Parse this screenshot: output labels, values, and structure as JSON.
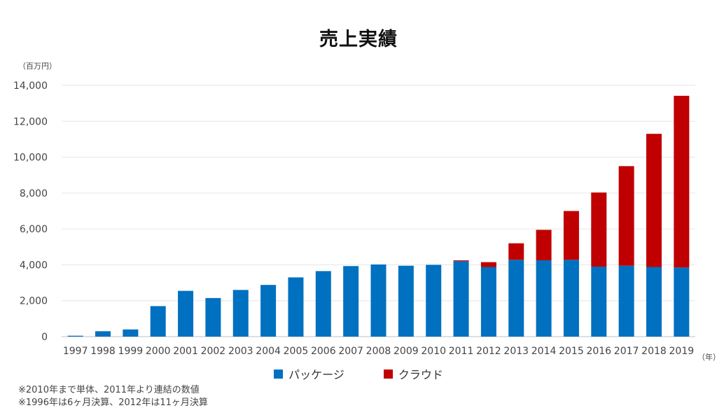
{
  "title": "売上実績",
  "y_unit": "（百万円）",
  "x_unit": "（年）",
  "notes": [
    "※2010年まで単体、2011年より連結の数値",
    "※1996年は6ヶ月決算、2012年は11ヶ月決算"
  ],
  "colors": {
    "package": "#0070C0",
    "cloud": "#C00000"
  },
  "chart_data": {
    "type": "bar",
    "stacked": true,
    "title": "売上実績",
    "xlabel": "（年）",
    "ylabel": "（百万円）",
    "ylim": [
      0,
      14000
    ],
    "yticks": [
      "0",
      "2,000",
      "4,000",
      "6,000",
      "8,000",
      "10,000",
      "12,000",
      "14,000"
    ],
    "ytick_values": [
      0,
      2000,
      4000,
      6000,
      8000,
      10000,
      12000,
      14000
    ],
    "grid": true,
    "legend_position": "bottom",
    "categories": [
      "1997",
      "1998",
      "1999",
      "2000",
      "2001",
      "2002",
      "2003",
      "2004",
      "2005",
      "2006",
      "2007",
      "2008",
      "2009",
      "2010",
      "2011",
      "2012",
      "2013",
      "2014",
      "2015",
      "2016",
      "2017",
      "2018",
      "2019"
    ],
    "series": [
      {
        "name": "パッケージ",
        "color": "#0070C0",
        "values": [
          50,
          300,
          400,
          1700,
          2550,
          2150,
          2600,
          2880,
          3300,
          3650,
          3930,
          4020,
          3950,
          4000,
          4200,
          3880,
          4280,
          4250,
          4280,
          3900,
          3950,
          3880,
          3850
        ]
      },
      {
        "name": "クラウド",
        "color": "#C00000",
        "values": [
          0,
          0,
          0,
          0,
          0,
          0,
          0,
          0,
          0,
          0,
          0,
          0,
          0,
          0,
          50,
          270,
          920,
          1700,
          2720,
          4130,
          5550,
          7420,
          9570
        ]
      }
    ]
  }
}
